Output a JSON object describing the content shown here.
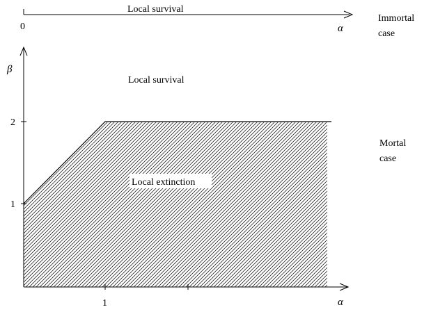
{
  "immortal": {
    "region_label": "Local survival",
    "origin_label": "0",
    "axis_symbol": "α",
    "case_label_line1": "Immortal",
    "case_label_line2": "case"
  },
  "mortal": {
    "survival_label": "Local survival",
    "extinction_label": "Local extinction",
    "x_axis_symbol": "α",
    "y_axis_symbol": "β",
    "x_tick": "1",
    "y_ticks": [
      "1",
      "2"
    ],
    "case_label_line1": "Mortal",
    "case_label_line2": "case"
  },
  "colors": {
    "ink": "#000000",
    "background": "#ffffff"
  }
}
